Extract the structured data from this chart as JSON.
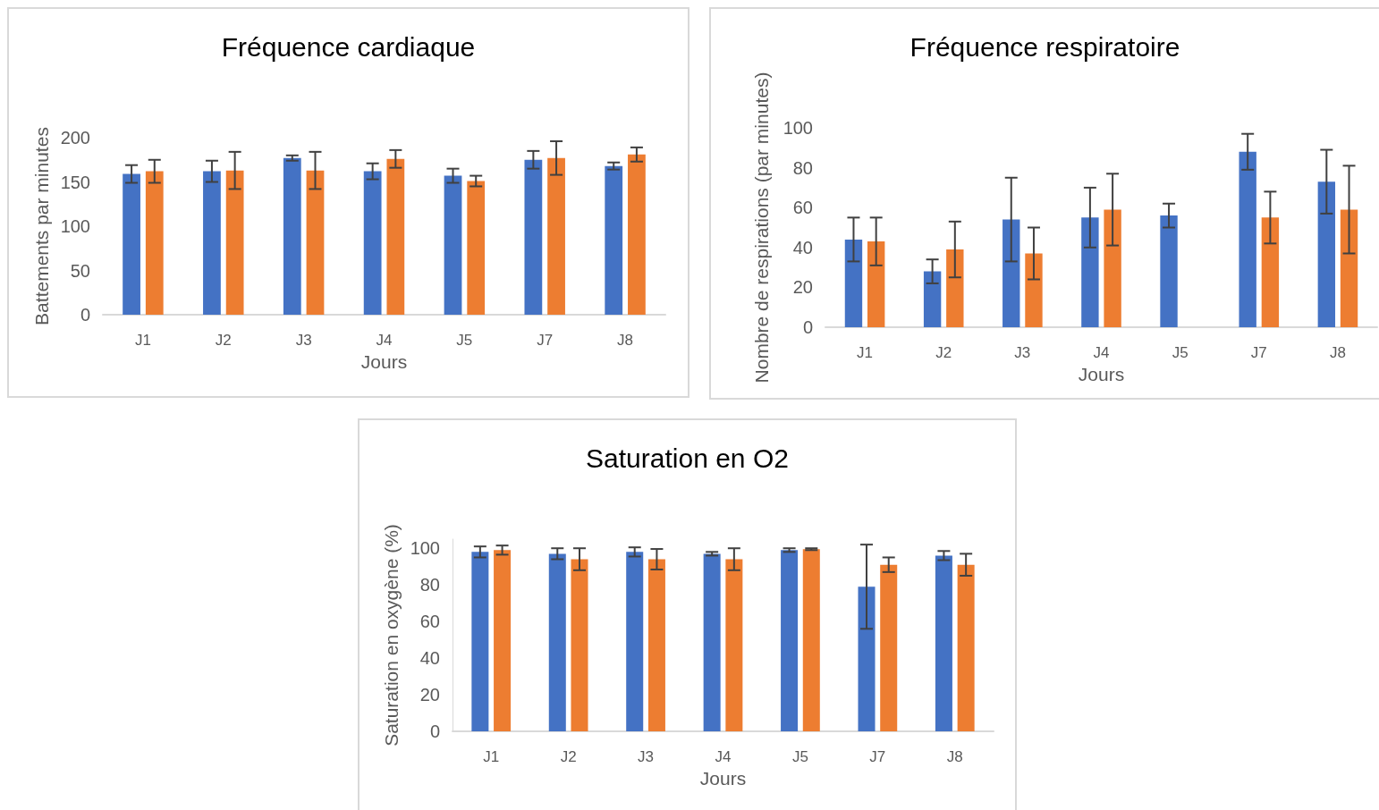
{
  "chart_data": [
    {
      "type": "bar",
      "title": "Fréquence cardiaque",
      "xlabel": "Jours",
      "ylabel": "Battements par minutes",
      "categories": [
        "J1",
        "J2",
        "J3",
        "J4",
        "J5",
        "J7",
        "J8"
      ],
      "series": [
        {
          "color": "#4472c4",
          "values": [
            159,
            162,
            177,
            162,
            157,
            175,
            168
          ],
          "errors": [
            10,
            12,
            3,
            9,
            8,
            10,
            4
          ]
        },
        {
          "color": "#ed7d31",
          "values": [
            162,
            163,
            163,
            176,
            151,
            177,
            181
          ],
          "errors": [
            13,
            21,
            21,
            10,
            6,
            19,
            8
          ]
        }
      ],
      "ylim": [
        0,
        200
      ],
      "yticks": [
        0,
        50,
        100,
        150,
        200
      ],
      "grid": false
    },
    {
      "type": "bar",
      "title": "Fréquence respiratoire",
      "xlabel": "Jours",
      "ylabel": "Nombre de respirations (par minutes)",
      "categories": [
        "J1",
        "J2",
        "J3",
        "J4",
        "J5",
        "J7",
        "J8"
      ],
      "series": [
        {
          "color": "#4472c4",
          "values": [
            44,
            28,
            54,
            55,
            56,
            88,
            73
          ],
          "errors": [
            11,
            6,
            21,
            15,
            6,
            9,
            16
          ]
        },
        {
          "color": "#ed7d31",
          "values": [
            43,
            39,
            37,
            59,
            null,
            55,
            59
          ],
          "errors": [
            12,
            14,
            13,
            18,
            null,
            13,
            22
          ]
        }
      ],
      "ylim": [
        0,
        100
      ],
      "yticks": [
        0,
        20,
        40,
        60,
        80,
        100
      ],
      "grid": false
    },
    {
      "type": "bar",
      "title": "Saturation en O2",
      "xlabel": "Jours",
      "ylabel": "Saturation en oxygène (%)",
      "categories": [
        "J1",
        "J2",
        "J3",
        "J4",
        "J5",
        "J7",
        "J8"
      ],
      "series": [
        {
          "color": "#4472c4",
          "values": [
            98,
            97,
            98,
            97,
            99,
            79,
            96
          ],
          "errors": [
            3,
            3,
            2.5,
            1,
            1,
            23,
            2.5
          ]
        },
        {
          "color": "#ed7d31",
          "values": [
            99,
            94,
            94,
            94,
            99.5,
            91,
            91
          ],
          "errors": [
            2.5,
            6,
            5.6,
            6,
            0.5,
            4,
            6
          ]
        }
      ],
      "ylim": [
        0,
        105
      ],
      "yticks": [
        0,
        20,
        40,
        60,
        80,
        100
      ],
      "grid": false
    }
  ]
}
